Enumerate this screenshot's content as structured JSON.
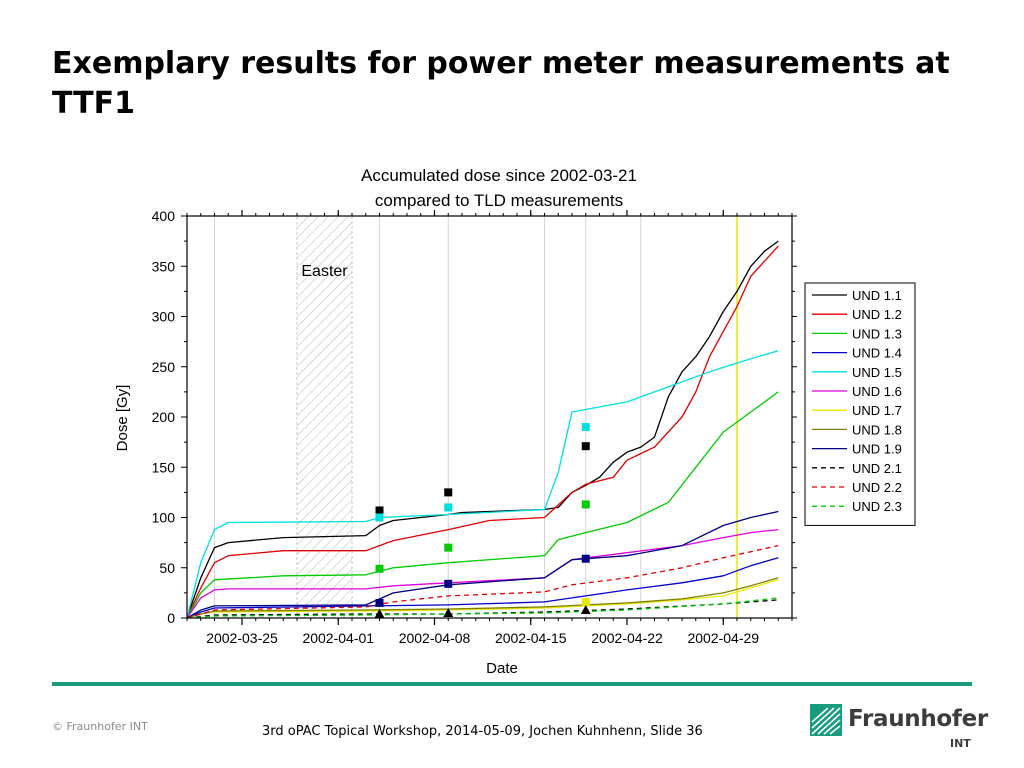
{
  "slide": {
    "title": "Exemplary results for power meter measurements at TTF1",
    "copyright": "© Fraunhofer INT",
    "footer": "3rd oPAC Topical Workshop, 2014-05-09, Jochen Kuhnhenn, Slide 36",
    "logo_name": "Fraunhofer",
    "logo_sub": "INT",
    "accent_color": "#179c7d"
  },
  "chart_data": {
    "type": "line",
    "title_lines": [
      "Accumulated dose since 2002-03-21",
      "compared to TLD measurements"
    ],
    "xlabel": "Date",
    "ylabel": "Dose [Gy]",
    "x_unit": "date",
    "xlim": [
      "2002-03-21",
      "2002-05-04"
    ],
    "ylim": [
      0,
      400
    ],
    "yticks": [
      0,
      50,
      100,
      150,
      200,
      250,
      300,
      350,
      400
    ],
    "xticks": [
      "2002-03-25",
      "2002-04-01",
      "2002-04-08",
      "2002-04-15",
      "2002-04-22",
      "2002-04-29"
    ],
    "grid_dates": [
      "2002-03-23",
      "2002-04-04",
      "2002-04-09",
      "2002-04-16",
      "2002-04-19",
      "2002-04-23",
      "2002-04-30"
    ],
    "legend_position": "right",
    "shaded_region": {
      "label": "Easter",
      "from": "2002-03-29",
      "to": "2002-04-02"
    },
    "vertical_marker": {
      "date": "2002-04-30",
      "color": "#e8e800"
    },
    "series": [
      {
        "name": "UND 1.1",
        "color": "#000000",
        "dash": false,
        "x": [
          "2002-03-21",
          "2002-03-22",
          "2002-03-23",
          "2002-03-24",
          "2002-03-28",
          "2002-04-03",
          "2002-04-04",
          "2002-04-05",
          "2002-04-09",
          "2002-04-10",
          "2002-04-16",
          "2002-04-17",
          "2002-04-18",
          "2002-04-19",
          "2002-04-20",
          "2002-04-21",
          "2002-04-22",
          "2002-04-23",
          "2002-04-24",
          "2002-04-25",
          "2002-04-26",
          "2002-04-27",
          "2002-04-28",
          "2002-04-29",
          "2002-04-30",
          "2002-05-01",
          "2002-05-02",
          "2002-05-03"
        ],
        "y": [
          0,
          40,
          70,
          75,
          80,
          82,
          92,
          97,
          103,
          105,
          108,
          110,
          125,
          132,
          140,
          155,
          165,
          170,
          180,
          220,
          245,
          260,
          280,
          305,
          325,
          350,
          365,
          375
        ]
      },
      {
        "name": "UND 1.2",
        "color": "#e00000",
        "dash": false,
        "x": [
          "2002-03-21",
          "2002-03-22",
          "2002-03-23",
          "2002-03-24",
          "2002-03-28",
          "2002-04-03",
          "2002-04-05",
          "2002-04-09",
          "2002-04-12",
          "2002-04-16",
          "2002-04-18",
          "2002-04-19",
          "2002-04-21",
          "2002-04-22",
          "2002-04-24",
          "2002-04-26",
          "2002-04-27",
          "2002-04-28",
          "2002-04-30",
          "2002-05-01",
          "2002-05-02",
          "2002-05-03"
        ],
        "y": [
          0,
          30,
          55,
          62,
          67,
          67,
          77,
          88,
          97,
          100,
          125,
          133,
          140,
          157,
          170,
          200,
          225,
          260,
          310,
          340,
          355,
          370
        ]
      },
      {
        "name": "UND 1.3",
        "color": "#00cc00",
        "dash": false,
        "x": [
          "2002-03-21",
          "2002-03-22",
          "2002-03-23",
          "2002-03-28",
          "2002-04-03",
          "2002-04-05",
          "2002-04-09",
          "2002-04-16",
          "2002-04-17",
          "2002-04-19",
          "2002-04-22",
          "2002-04-25",
          "2002-04-27",
          "2002-04-29",
          "2002-05-01",
          "2002-05-03"
        ],
        "y": [
          0,
          25,
          38,
          42,
          43,
          50,
          55,
          62,
          78,
          85,
          95,
          115,
          150,
          185,
          205,
          225
        ]
      },
      {
        "name": "UND 1.4",
        "color": "#0000cc",
        "dash": false,
        "x": [
          "2002-03-21",
          "2002-03-22",
          "2002-03-23",
          "2002-04-03",
          "2002-04-09",
          "2002-04-16",
          "2002-04-19",
          "2002-04-22",
          "2002-04-26",
          "2002-04-29",
          "2002-05-01",
          "2002-05-03"
        ],
        "y": [
          0,
          6,
          10,
          12,
          13,
          16,
          22,
          28,
          35,
          42,
          52,
          60
        ]
      },
      {
        "name": "UND 1.5",
        "color": "#00e0e0",
        "dash": false,
        "x": [
          "2002-03-21",
          "2002-03-22",
          "2002-03-23",
          "2002-03-24",
          "2002-04-03",
          "2002-04-04",
          "2002-04-09",
          "2002-04-16",
          "2002-04-17",
          "2002-04-18",
          "2002-04-22",
          "2002-04-25",
          "2002-04-28",
          "2002-05-01",
          "2002-05-03"
        ],
        "y": [
          0,
          55,
          88,
          95,
          96,
          100,
          103,
          108,
          145,
          205,
          215,
          230,
          245,
          258,
          266
        ]
      },
      {
        "name": "UND 1.6",
        "color": "#e000e0",
        "dash": false,
        "x": [
          "2002-03-21",
          "2002-03-22",
          "2002-03-23",
          "2002-03-24",
          "2002-04-03",
          "2002-04-05",
          "2002-04-09",
          "2002-04-16",
          "2002-04-18",
          "2002-04-22",
          "2002-04-26",
          "2002-04-29",
          "2002-05-01",
          "2002-05-03"
        ],
        "y": [
          0,
          20,
          28,
          29,
          29,
          32,
          35,
          40,
          58,
          65,
          72,
          80,
          85,
          88
        ]
      },
      {
        "name": "UND 1.7",
        "color": "#e8e800",
        "dash": false,
        "x": [
          "2002-03-21",
          "2002-03-22",
          "2002-03-23",
          "2002-04-03",
          "2002-04-09",
          "2002-04-16",
          "2002-04-19",
          "2002-04-22",
          "2002-04-26",
          "2002-04-29",
          "2002-05-01",
          "2002-05-03"
        ],
        "y": [
          0,
          4,
          6,
          7,
          8,
          10,
          12,
          14,
          18,
          22,
          30,
          38
        ]
      },
      {
        "name": "UND 1.8",
        "color": "#808000",
        "dash": false,
        "x": [
          "2002-03-21",
          "2002-03-22",
          "2002-03-23",
          "2002-04-03",
          "2002-04-09",
          "2002-04-16",
          "2002-04-19",
          "2002-04-22",
          "2002-04-26",
          "2002-04-29",
          "2002-05-01",
          "2002-05-03"
        ],
        "y": [
          0,
          4,
          7,
          8,
          9,
          11,
          13,
          15,
          19,
          25,
          32,
          40
        ]
      },
      {
        "name": "UND 1.9",
        "color": "#000080",
        "dash": false,
        "x": [
          "2002-03-21",
          "2002-03-22",
          "2002-03-23",
          "2002-04-03",
          "2002-04-05",
          "2002-04-09",
          "2002-04-16",
          "2002-04-18",
          "2002-04-22",
          "2002-04-26",
          "2002-04-29",
          "2002-05-01",
          "2002-05-03"
        ],
        "y": [
          0,
          8,
          12,
          13,
          25,
          33,
          40,
          58,
          62,
          72,
          92,
          100,
          106
        ]
      },
      {
        "name": "UND 2.1",
        "color": "#000000",
        "dash": true,
        "x": [
          "2002-03-21",
          "2002-03-23",
          "2002-04-03",
          "2002-04-09",
          "2002-04-16",
          "2002-04-22",
          "2002-04-29",
          "2002-05-03"
        ],
        "y": [
          0,
          3,
          4,
          4,
          6,
          9,
          14,
          18
        ]
      },
      {
        "name": "UND 2.2",
        "color": "#e00000",
        "dash": true,
        "x": [
          "2002-03-21",
          "2002-03-23",
          "2002-04-03",
          "2002-04-05",
          "2002-04-09",
          "2002-04-16",
          "2002-04-18",
          "2002-04-22",
          "2002-04-26",
          "2002-04-29",
          "2002-05-01",
          "2002-05-03"
        ],
        "y": [
          0,
          8,
          11,
          16,
          22,
          26,
          33,
          40,
          50,
          60,
          66,
          72
        ]
      },
      {
        "name": "UND 2.3",
        "color": "#00cc00",
        "dash": true,
        "x": [
          "2002-03-21",
          "2002-03-23",
          "2002-04-03",
          "2002-04-09",
          "2002-04-16",
          "2002-04-22",
          "2002-04-29",
          "2002-05-03"
        ],
        "y": [
          0,
          2,
          3,
          4,
          5,
          8,
          14,
          20
        ]
      }
    ],
    "tld_points": [
      {
        "x": "2002-04-04",
        "y": 107,
        "color": "#000000",
        "marker": "square"
      },
      {
        "x": "2002-04-04",
        "y": 100,
        "color": "#00e0e0",
        "marker": "square"
      },
      {
        "x": "2002-04-04",
        "y": 49,
        "color": "#00cc00",
        "marker": "square"
      },
      {
        "x": "2002-04-04",
        "y": 15,
        "color": "#000080",
        "marker": "square"
      },
      {
        "x": "2002-04-04",
        "y": 4,
        "color": "#000000",
        "marker": "triangle"
      },
      {
        "x": "2002-04-09",
        "y": 125,
        "color": "#000000",
        "marker": "square"
      },
      {
        "x": "2002-04-09",
        "y": 110,
        "color": "#00e0e0",
        "marker": "square"
      },
      {
        "x": "2002-04-09",
        "y": 70,
        "color": "#00cc00",
        "marker": "square"
      },
      {
        "x": "2002-04-09",
        "y": 34,
        "color": "#000080",
        "marker": "square"
      },
      {
        "x": "2002-04-09",
        "y": 5,
        "color": "#000000",
        "marker": "triangle"
      },
      {
        "x": "2002-04-19",
        "y": 190,
        "color": "#00e0e0",
        "marker": "square"
      },
      {
        "x": "2002-04-19",
        "y": 171,
        "color": "#000000",
        "marker": "square"
      },
      {
        "x": "2002-04-19",
        "y": 113,
        "color": "#00cc00",
        "marker": "square"
      },
      {
        "x": "2002-04-19",
        "y": 59,
        "color": "#000080",
        "marker": "square"
      },
      {
        "x": "2002-04-19",
        "y": 16,
        "color": "#e8e800",
        "marker": "square"
      },
      {
        "x": "2002-04-19",
        "y": 8,
        "color": "#000000",
        "marker": "triangle"
      }
    ]
  }
}
